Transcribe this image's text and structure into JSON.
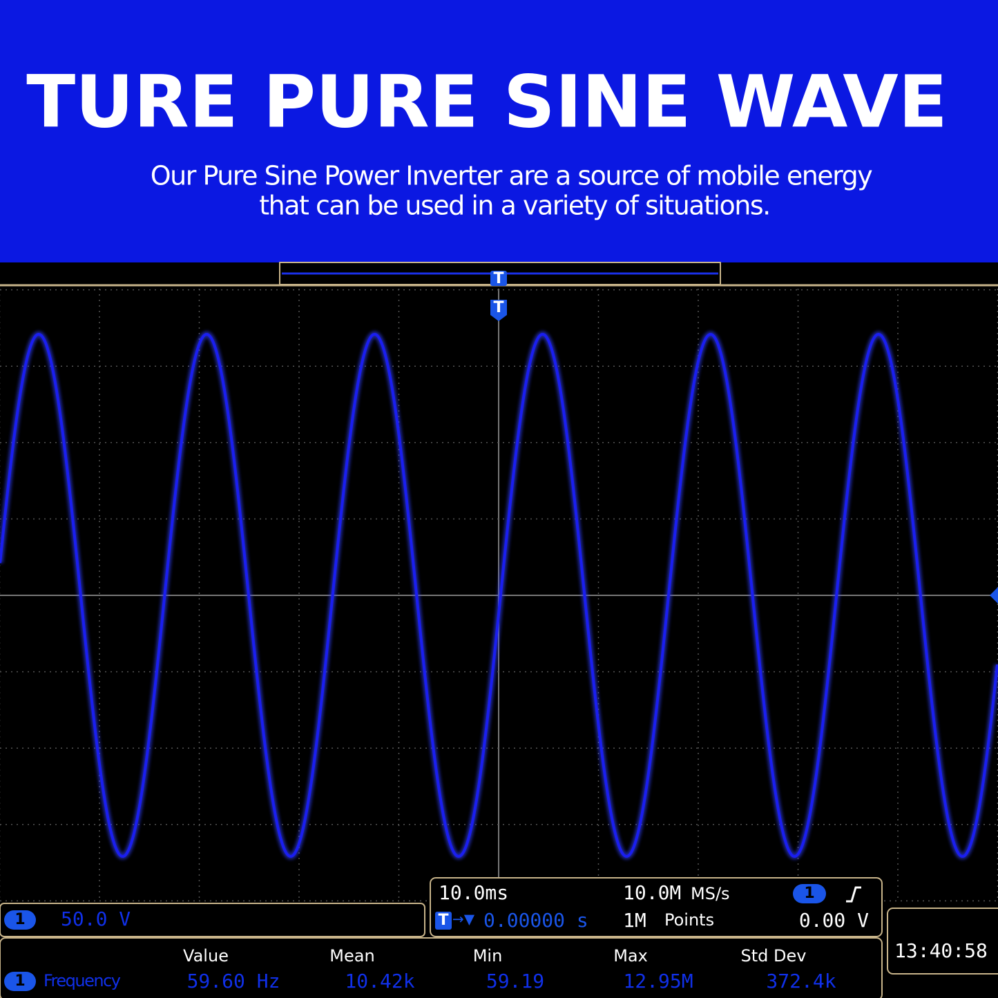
{
  "banner": {
    "title": "TURE PURE SINE WAVE",
    "subtitle": [
      "Our Pure Sine Power Inverter are a source of mobile energy",
      "that can be used in a variety of situations."
    ]
  },
  "scope": {
    "trigger_marker": "T",
    "channel": "1",
    "vertical_scale": "50.0 V",
    "timebase": "10.0ms",
    "sample_rate": "10.0M",
    "sample_rate_unit": "MS/s",
    "trigger_offset_arrow": "→▼",
    "trigger_offset": "0.00000 s",
    "record_length": "1M",
    "record_length_unit": "Points",
    "trigger_level": "0.00 V",
    "clock": "13:40:58",
    "measurements": {
      "headers": [
        "Value",
        "Mean",
        "Min",
        "Max",
        "Std Dev"
      ],
      "name": "Frequency",
      "values": [
        "59.60 Hz",
        "10.42k",
        "59.19",
        "12.95M",
        "372.4k"
      ]
    }
  }
}
